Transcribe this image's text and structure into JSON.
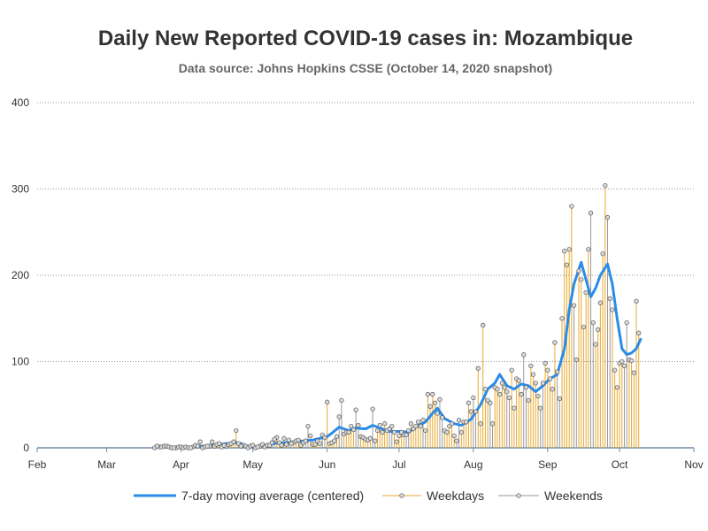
{
  "colors": {
    "average": "#2a8ce8",
    "weekdays": "#e8a92e",
    "weekends": "#9a9a9a",
    "grid": "#999999",
    "axis": "#6e8aa6"
  },
  "chart_data": {
    "type": "bar",
    "title": "Daily New Reported COVID-19 cases in: Mozambique",
    "subtitle": "Data source: Johns Hopkins CSSE (October 14, 2020 snapshot)",
    "grid": "y-dotted",
    "legend_position": "bottom",
    "ylim": [
      0,
      400
    ],
    "yticks": [
      0,
      100,
      200,
      300,
      400
    ],
    "xlim": [
      "2020-02-01",
      "2020-11-01"
    ],
    "xticks": [
      {
        "date": "2020-02-01",
        "label": "Feb"
      },
      {
        "date": "2020-03-01",
        "label": "Mar"
      },
      {
        "date": "2020-04-01",
        "label": "Apr"
      },
      {
        "date": "2020-05-01",
        "label": "May"
      },
      {
        "date": "2020-06-01",
        "label": "Jun"
      },
      {
        "date": "2020-07-01",
        "label": "Jul"
      },
      {
        "date": "2020-08-01",
        "label": "Aug"
      },
      {
        "date": "2020-09-01",
        "label": "Sep"
      },
      {
        "date": "2020-10-01",
        "label": "Oct"
      },
      {
        "date": "2020-11-01",
        "label": "Nov"
      }
    ],
    "series": [
      {
        "name": "Weekdays",
        "points": [
          [
            "2020-03-23",
            1
          ],
          [
            "2020-03-24",
            1
          ],
          [
            "2020-03-25",
            2
          ],
          [
            "2020-03-26",
            2
          ],
          [
            "2020-03-27",
            1
          ],
          [
            "2020-03-30",
            0
          ],
          [
            "2020-03-31",
            1
          ],
          [
            "2020-04-01",
            1
          ],
          [
            "2020-04-02",
            0
          ],
          [
            "2020-04-03",
            1
          ],
          [
            "2020-04-06",
            1
          ],
          [
            "2020-04-07",
            3
          ],
          [
            "2020-04-08",
            2
          ],
          [
            "2020-04-09",
            7
          ],
          [
            "2020-04-10",
            0
          ],
          [
            "2020-04-13",
            2
          ],
          [
            "2020-04-14",
            7
          ],
          [
            "2020-04-15",
            2
          ],
          [
            "2020-04-16",
            4
          ],
          [
            "2020-04-17",
            5
          ],
          [
            "2020-04-20",
            2
          ],
          [
            "2020-04-21",
            4
          ],
          [
            "2020-04-22",
            5
          ],
          [
            "2020-04-23",
            7
          ],
          [
            "2020-04-24",
            20
          ],
          [
            "2020-04-27",
            3
          ],
          [
            "2020-04-28",
            2
          ],
          [
            "2020-04-29",
            0
          ],
          [
            "2020-04-30",
            2
          ],
          [
            "2020-05-01",
            3
          ],
          [
            "2020-05-04",
            2
          ],
          [
            "2020-05-05",
            4
          ],
          [
            "2020-05-06",
            1
          ],
          [
            "2020-05-07",
            3
          ],
          [
            "2020-05-08",
            3
          ],
          [
            "2020-05-11",
            12
          ],
          [
            "2020-05-12",
            6
          ],
          [
            "2020-05-13",
            3
          ],
          [
            "2020-05-14",
            11
          ],
          [
            "2020-05-15",
            4
          ],
          [
            "2020-05-18",
            6
          ],
          [
            "2020-05-19",
            8
          ],
          [
            "2020-05-20",
            9
          ],
          [
            "2020-05-21",
            3
          ],
          [
            "2020-05-22",
            6
          ],
          [
            "2020-05-25",
            14
          ],
          [
            "2020-05-26",
            4
          ],
          [
            "2020-05-27",
            4
          ],
          [
            "2020-05-28",
            8
          ],
          [
            "2020-05-29",
            5
          ],
          [
            "2020-06-01",
            53
          ],
          [
            "2020-06-02",
            5
          ],
          [
            "2020-06-03",
            6
          ],
          [
            "2020-06-04",
            8
          ],
          [
            "2020-06-05",
            13
          ],
          [
            "2020-06-08",
            16
          ],
          [
            "2020-06-09",
            18
          ],
          [
            "2020-06-10",
            18
          ],
          [
            "2020-06-11",
            25
          ],
          [
            "2020-06-12",
            21
          ],
          [
            "2020-06-15",
            13
          ],
          [
            "2020-06-16",
            12
          ],
          [
            "2020-06-17",
            10
          ],
          [
            "2020-06-18",
            9
          ],
          [
            "2020-06-19",
            11
          ],
          [
            "2020-06-22",
            20
          ],
          [
            "2020-06-23",
            26
          ],
          [
            "2020-06-24",
            18
          ],
          [
            "2020-06-25",
            28
          ],
          [
            "2020-06-26",
            20
          ],
          [
            "2020-06-29",
            18
          ],
          [
            "2020-06-30",
            7
          ],
          [
            "2020-07-01",
            14
          ],
          [
            "2020-07-02",
            18
          ],
          [
            "2020-07-03",
            15
          ],
          [
            "2020-07-06",
            28
          ],
          [
            "2020-07-07",
            22
          ],
          [
            "2020-07-08",
            25
          ],
          [
            "2020-07-09",
            30
          ],
          [
            "2020-07-10",
            25
          ],
          [
            "2020-07-13",
            62
          ],
          [
            "2020-07-14",
            48
          ],
          [
            "2020-07-15",
            62
          ],
          [
            "2020-07-16",
            52
          ],
          [
            "2020-07-17",
            40
          ],
          [
            "2020-07-20",
            20
          ],
          [
            "2020-07-21",
            18
          ],
          [
            "2020-07-22",
            25
          ],
          [
            "2020-07-23",
            28
          ],
          [
            "2020-07-24",
            14
          ],
          [
            "2020-07-27",
            18
          ],
          [
            "2020-07-28",
            30
          ],
          [
            "2020-07-29",
            30
          ],
          [
            "2020-07-30",
            52
          ],
          [
            "2020-07-31",
            42
          ],
          [
            "2020-08-03",
            92
          ],
          [
            "2020-08-04",
            28
          ],
          [
            "2020-08-05",
            142
          ],
          [
            "2020-08-06",
            68
          ],
          [
            "2020-08-07",
            55
          ],
          [
            "2020-08-10",
            70
          ],
          [
            "2020-08-11",
            68
          ],
          [
            "2020-08-12",
            62
          ],
          [
            "2020-08-13",
            75
          ],
          [
            "2020-08-14",
            70
          ],
          [
            "2020-08-17",
            90
          ],
          [
            "2020-08-18",
            46
          ],
          [
            "2020-08-19",
            80
          ],
          [
            "2020-08-20",
            78
          ],
          [
            "2020-08-21",
            62
          ],
          [
            "2020-08-24",
            55
          ],
          [
            "2020-08-25",
            95
          ],
          [
            "2020-08-26",
            85
          ],
          [
            "2020-08-27",
            75
          ],
          [
            "2020-08-28",
            60
          ],
          [
            "2020-08-31",
            98
          ],
          [
            "2020-09-01",
            90
          ],
          [
            "2020-09-02",
            80
          ],
          [
            "2020-09-03",
            68
          ],
          [
            "2020-09-04",
            122
          ],
          [
            "2020-09-07",
            150
          ],
          [
            "2020-09-08",
            228
          ],
          [
            "2020-09-09",
            212
          ],
          [
            "2020-09-10",
            230
          ],
          [
            "2020-09-11",
            280
          ],
          [
            "2020-09-14",
            205
          ],
          [
            "2020-09-15",
            195
          ],
          [
            "2020-09-16",
            140
          ],
          [
            "2020-09-17",
            180
          ],
          [
            "2020-09-18",
            230
          ],
          [
            "2020-09-21",
            120
          ],
          [
            "2020-09-22",
            137
          ],
          [
            "2020-09-23",
            168
          ],
          [
            "2020-09-24",
            225
          ],
          [
            "2020-09-25",
            304
          ],
          [
            "2020-09-28",
            160
          ],
          [
            "2020-09-29",
            90
          ],
          [
            "2020-09-30",
            70
          ],
          [
            "2020-10-01",
            98
          ],
          [
            "2020-10-02",
            100
          ],
          [
            "2020-10-05",
            102
          ],
          [
            "2020-10-06",
            101
          ],
          [
            "2020-10-07",
            87
          ],
          [
            "2020-10-08",
            170
          ],
          [
            "2020-10-09",
            133
          ]
        ]
      },
      {
        "name": "Weekends",
        "points": [
          [
            "2020-03-21",
            0
          ],
          [
            "2020-03-22",
            2
          ],
          [
            "2020-03-28",
            0
          ],
          [
            "2020-03-29",
            0
          ],
          [
            "2020-04-04",
            0
          ],
          [
            "2020-04-05",
            0
          ],
          [
            "2020-04-11",
            1
          ],
          [
            "2020-04-12",
            2
          ],
          [
            "2020-04-18",
            1
          ],
          [
            "2020-04-19",
            3
          ],
          [
            "2020-04-25",
            5
          ],
          [
            "2020-04-26",
            2
          ],
          [
            "2020-05-02",
            0
          ],
          [
            "2020-05-03",
            1
          ],
          [
            "2020-05-09",
            6
          ],
          [
            "2020-05-10",
            10
          ],
          [
            "2020-05-16",
            9
          ],
          [
            "2020-05-17",
            5
          ],
          [
            "2020-05-23",
            8
          ],
          [
            "2020-05-24",
            25
          ],
          [
            "2020-05-30",
            15
          ],
          [
            "2020-05-31",
            12
          ],
          [
            "2020-06-06",
            36
          ],
          [
            "2020-06-07",
            55
          ],
          [
            "2020-06-13",
            44
          ],
          [
            "2020-06-14",
            26
          ],
          [
            "2020-06-20",
            45
          ],
          [
            "2020-06-21",
            8
          ],
          [
            "2020-06-27",
            22
          ],
          [
            "2020-06-28",
            25
          ],
          [
            "2020-07-04",
            15
          ],
          [
            "2020-07-05",
            20
          ],
          [
            "2020-07-11",
            32
          ],
          [
            "2020-07-12",
            20
          ],
          [
            "2020-07-18",
            56
          ],
          [
            "2020-07-19",
            35
          ],
          [
            "2020-07-25",
            8
          ],
          [
            "2020-07-26",
            32
          ],
          [
            "2020-08-01",
            58
          ],
          [
            "2020-08-02",
            42
          ],
          [
            "2020-08-08",
            52
          ],
          [
            "2020-08-09",
            28
          ],
          [
            "2020-08-15",
            65
          ],
          [
            "2020-08-16",
            58
          ],
          [
            "2020-08-22",
            108
          ],
          [
            "2020-08-23",
            70
          ],
          [
            "2020-08-29",
            46
          ],
          [
            "2020-08-30",
            75
          ],
          [
            "2020-09-05",
            88
          ],
          [
            "2020-09-06",
            57
          ],
          [
            "2020-09-12",
            165
          ],
          [
            "2020-09-13",
            102
          ],
          [
            "2020-09-19",
            272
          ],
          [
            "2020-09-20",
            145
          ],
          [
            "2020-09-26",
            267
          ],
          [
            "2020-09-27",
            173
          ],
          [
            "2020-10-03",
            95
          ],
          [
            "2020-10-04",
            145
          ]
        ]
      },
      {
        "name": "7-day moving average (centered)",
        "points": [
          [
            "2020-03-24",
            1
          ],
          [
            "2020-03-28",
            1
          ],
          [
            "2020-04-01",
            1
          ],
          [
            "2020-04-05",
            1
          ],
          [
            "2020-04-10",
            2
          ],
          [
            "2020-04-15",
            3
          ],
          [
            "2020-04-20",
            5
          ],
          [
            "2020-04-24",
            6
          ],
          [
            "2020-04-26",
            5
          ],
          [
            "2020-04-28",
            2
          ],
          [
            "2020-05-02",
            1
          ],
          [
            "2020-05-06",
            3
          ],
          [
            "2020-05-10",
            5
          ],
          [
            "2020-05-14",
            6
          ],
          [
            "2020-05-18",
            7
          ],
          [
            "2020-05-22",
            8
          ],
          [
            "2020-05-26",
            9
          ],
          [
            "2020-05-29",
            11
          ],
          [
            "2020-06-01",
            13
          ],
          [
            "2020-06-03",
            17
          ],
          [
            "2020-06-06",
            24
          ],
          [
            "2020-06-08",
            22
          ],
          [
            "2020-06-10",
            20
          ],
          [
            "2020-06-13",
            23
          ],
          [
            "2020-06-17",
            22
          ],
          [
            "2020-06-20",
            26
          ],
          [
            "2020-06-24",
            22
          ],
          [
            "2020-06-27",
            19
          ],
          [
            "2020-07-01",
            19
          ],
          [
            "2020-07-05",
            18
          ],
          [
            "2020-07-08",
            24
          ],
          [
            "2020-07-12",
            30
          ],
          [
            "2020-07-15",
            40
          ],
          [
            "2020-07-17",
            46
          ],
          [
            "2020-07-20",
            34
          ],
          [
            "2020-07-24",
            28
          ],
          [
            "2020-07-27",
            26
          ],
          [
            "2020-07-31",
            33
          ],
          [
            "2020-08-04",
            50
          ],
          [
            "2020-08-07",
            68
          ],
          [
            "2020-08-10",
            75
          ],
          [
            "2020-08-12",
            85
          ],
          [
            "2020-08-15",
            72
          ],
          [
            "2020-08-18",
            68
          ],
          [
            "2020-08-21",
            74
          ],
          [
            "2020-08-24",
            72
          ],
          [
            "2020-08-27",
            65
          ],
          [
            "2020-08-30",
            72
          ],
          [
            "2020-09-02",
            80
          ],
          [
            "2020-09-05",
            85
          ],
          [
            "2020-09-08",
            115
          ],
          [
            "2020-09-10",
            160
          ],
          [
            "2020-09-12",
            190
          ],
          [
            "2020-09-15",
            215
          ],
          [
            "2020-09-17",
            195
          ],
          [
            "2020-09-19",
            175
          ],
          [
            "2020-09-21",
            185
          ],
          [
            "2020-09-23",
            200
          ],
          [
            "2020-09-26",
            213
          ],
          [
            "2020-09-28",
            190
          ],
          [
            "2020-09-30",
            150
          ],
          [
            "2020-10-02",
            115
          ],
          [
            "2020-10-04",
            108
          ],
          [
            "2020-10-06",
            110
          ],
          [
            "2020-10-08",
            115
          ],
          [
            "2020-10-10",
            127
          ]
        ]
      }
    ]
  }
}
